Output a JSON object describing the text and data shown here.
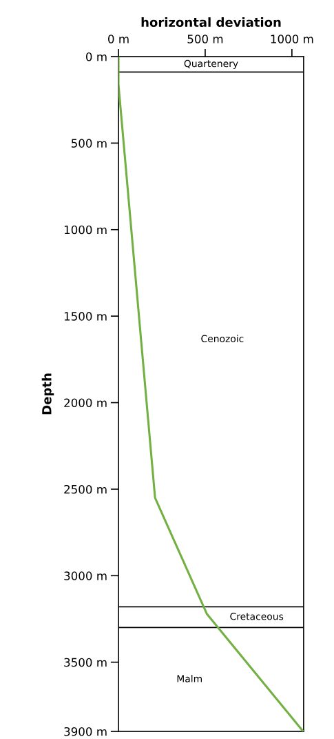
{
  "chart_data": {
    "type": "line",
    "xlabel": "horizontal deviation",
    "ylabel": "Depth",
    "x": [
      0,
      0,
      211,
      509,
      1065
    ],
    "series": [
      {
        "color": "#72b043",
        "values": [
          0,
          160,
          2550,
          3220,
          3900
        ]
      }
    ],
    "xlim": [
      0,
      1068
    ],
    "ylim": [
      3900,
      0
    ],
    "xticks": [
      {
        "value": 0,
        "label": "0 m"
      },
      {
        "value": 500,
        "label": "500 m"
      },
      {
        "value": 1000,
        "label": "1000 m"
      }
    ],
    "yticks": [
      {
        "value": 0,
        "label": "0 m"
      },
      {
        "value": 500,
        "label": "500 m"
      },
      {
        "value": 1000,
        "label": "1000 m"
      },
      {
        "value": 1500,
        "label": "1500 m"
      },
      {
        "value": 2000,
        "label": "2000 m"
      },
      {
        "value": 2500,
        "label": "2500 m"
      },
      {
        "value": 3000,
        "label": "3000 m"
      },
      {
        "value": 3500,
        "label": "3500 m"
      },
      {
        "value": 3900,
        "label": "3900 m"
      }
    ],
    "bands": [
      {
        "axis": "y",
        "from": 0,
        "to": 90,
        "label": "Quartenery",
        "color": "#ffffff"
      },
      {
        "axis": "y",
        "from": 90,
        "to": 3180,
        "label": "Cenozoic",
        "color": "#ffffff"
      },
      {
        "axis": "y",
        "from": 3180,
        "to": 3300,
        "label": "Cretaceous",
        "color": "#ffffff"
      },
      {
        "axis": "y",
        "from": 3300,
        "to": 3900,
        "label": "Malm",
        "color": "#ffffff"
      }
    ],
    "grid": false,
    "legend": false,
    "marker": "none",
    "line_style": "solid"
  }
}
